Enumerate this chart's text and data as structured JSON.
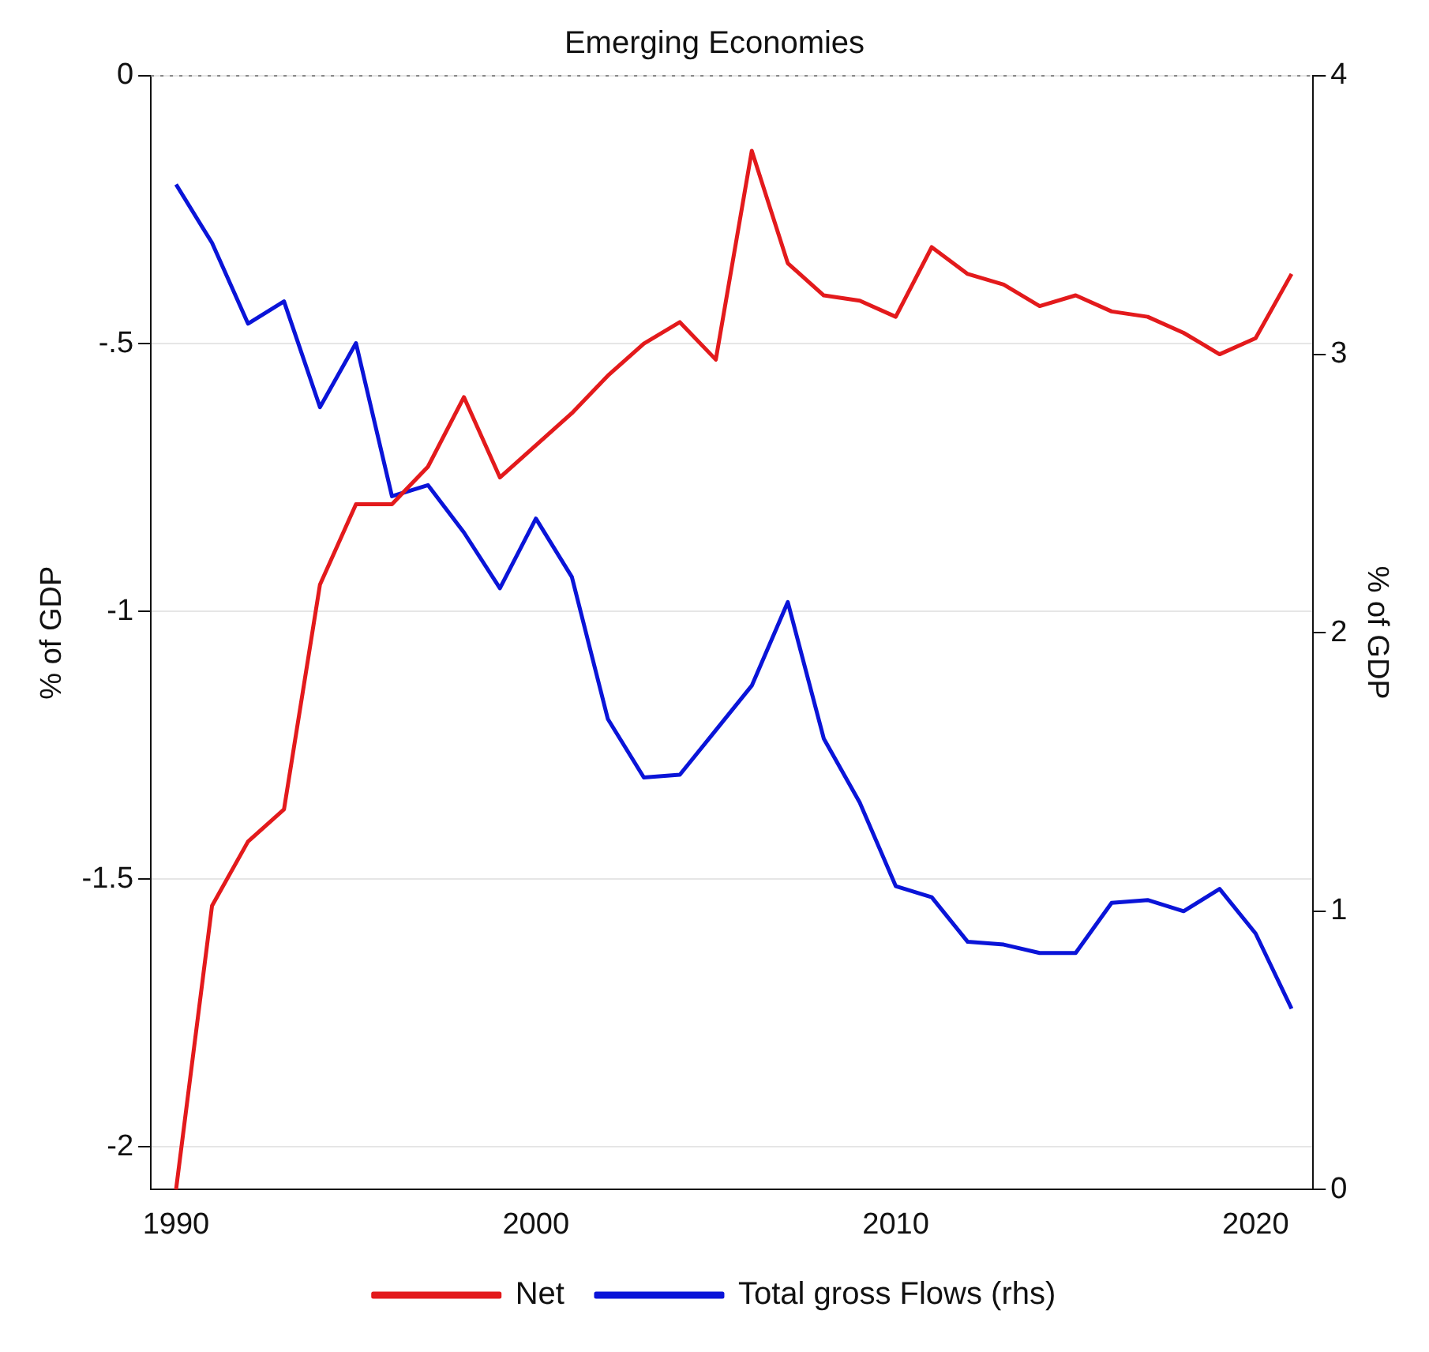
{
  "chart_data": {
    "type": "line",
    "title": "Emerging Economies",
    "ylabel": "% of GDP",
    "y2label": "% of GDP",
    "x": [
      1990,
      1991,
      1992,
      1993,
      1994,
      1995,
      1996,
      1997,
      1998,
      1999,
      2000,
      2001,
      2002,
      2003,
      2004,
      2005,
      2006,
      2007,
      2008,
      2009,
      2010,
      2011,
      2012,
      2013,
      2014,
      2015,
      2016,
      2017,
      2018,
      2019,
      2020,
      2021
    ],
    "xlim": [
      1989.3,
      2021.6
    ],
    "xticks": [
      1990,
      2000,
      2010,
      2020
    ],
    "ylim": [
      -2.08,
      0
    ],
    "yticks": [
      {
        "value": -2,
        "label": "-2"
      },
      {
        "value": -1.5,
        "label": "-1.5"
      },
      {
        "value": -1,
        "label": "-1"
      },
      {
        "value": -0.5,
        "label": "-.5"
      },
      {
        "value": 0,
        "label": "0"
      }
    ],
    "y2lim": [
      0,
      4
    ],
    "y2ticks": [
      0,
      1,
      2,
      3,
      4
    ],
    "series": [
      {
        "name": "Net",
        "color": "#e31a1c",
        "values": [
          -2.08,
          -1.55,
          -1.43,
          -1.37,
          -0.95,
          -0.8,
          -0.8,
          -0.73,
          -0.6,
          -0.75,
          -0.69,
          -0.63,
          -0.56,
          -0.5,
          -0.46,
          -0.53,
          -0.14,
          -0.35,
          -0.41,
          -0.42,
          -0.45,
          -0.32,
          -0.37,
          -0.39,
          -0.43,
          -0.41,
          -0.44,
          -0.45,
          -0.48,
          -0.52,
          -0.49,
          -0.37
        ]
      },
      {
        "name": "Total gross Flows (rhs)",
        "color": "#0a14d8",
        "axis": "y2",
        "values": [
          3.61,
          3.4,
          3.11,
          3.19,
          2.81,
          3.04,
          2.49,
          2.53,
          2.36,
          2.16,
          2.41,
          2.2,
          1.69,
          1.48,
          1.49,
          1.65,
          1.81,
          2.11,
          1.62,
          1.39,
          1.09,
          1.05,
          0.89,
          0.88,
          0.85,
          0.85,
          1.03,
          1.04,
          1.0,
          1.08,
          0.92,
          0.65
        ]
      }
    ],
    "ref_lines": [
      {
        "axis": "y",
        "value": 0,
        "color": "#888888",
        "line_style": "dotted"
      }
    ],
    "grid": "y",
    "legend": "bottom",
    "marker": "none",
    "line_style": "solid"
  }
}
